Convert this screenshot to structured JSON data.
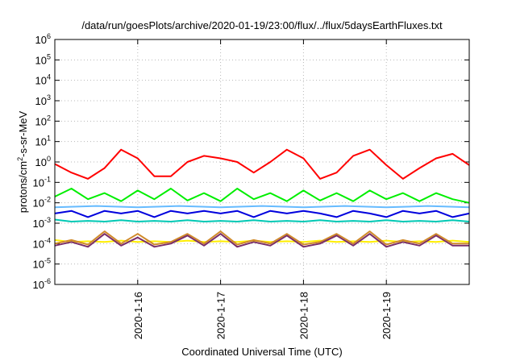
{
  "chart_data": {
    "type": "line",
    "title": "/data/run/goesPlots/archive/2020-01-19/23:00/flux/../flux/5daysEarthFluxes.txt",
    "xlabel": "Coordinated Universal Time (UTC)",
    "ylabel_parts": [
      "protons/cm",
      "2",
      "-s-sr-MeV"
    ],
    "scale_y": "log",
    "grid": true,
    "ylim": [
      1e-06,
      1000000.0
    ],
    "yticks": [
      {
        "base": "10",
        "exp": "-6",
        "value": -6
      },
      {
        "base": "10",
        "exp": "-5",
        "value": -5
      },
      {
        "base": "10",
        "exp": "-4",
        "value": -4
      },
      {
        "base": "10",
        "exp": "-3",
        "value": -3
      },
      {
        "base": "10",
        "exp": "-2",
        "value": -2
      },
      {
        "base": "10",
        "exp": "-1",
        "value": -1
      },
      {
        "base": "10",
        "exp": "0",
        "value": 0
      },
      {
        "base": "10",
        "exp": "1",
        "value": 1
      },
      {
        "base": "10",
        "exp": "2",
        "value": 2
      },
      {
        "base": "10",
        "exp": "3",
        "value": 3
      },
      {
        "base": "10",
        "exp": "4",
        "value": 4
      },
      {
        "base": "10",
        "exp": "5",
        "value": 5
      },
      {
        "base": "10",
        "exp": "6",
        "value": 6
      }
    ],
    "xlim_days": [
      15.0,
      20.0
    ],
    "xticks": [
      {
        "label": "2020-1-16",
        "day": 16
      },
      {
        "label": "2020-1-17",
        "day": 17
      },
      {
        "label": "2020-1-18",
        "day": 18
      },
      {
        "label": "2020-1-19",
        "day": 19
      }
    ],
    "series": [
      {
        "color": "#ff0000",
        "x": [
          15.0,
          15.2,
          15.4,
          15.6,
          15.8,
          16.0,
          16.2,
          16.4,
          16.6,
          16.8,
          17.0,
          17.2,
          17.4,
          17.6,
          17.8,
          18.0,
          18.2,
          18.4,
          18.6,
          18.8,
          19.0,
          19.2,
          19.4,
          19.6,
          19.8,
          20.0
        ],
        "y": [
          0.8,
          0.3,
          0.15,
          0.5,
          4.0,
          1.5,
          0.2,
          0.2,
          1.0,
          2.0,
          1.5,
          1.0,
          0.3,
          1.0,
          4.0,
          1.5,
          0.15,
          0.3,
          2.0,
          4.0,
          0.7,
          0.15,
          0.5,
          1.5,
          2.5,
          0.7
        ]
      },
      {
        "color": "#00ee00",
        "x": [
          15.0,
          15.2,
          15.4,
          15.6,
          15.8,
          16.0,
          16.2,
          16.4,
          16.6,
          16.8,
          17.0,
          17.2,
          17.4,
          17.6,
          17.8,
          18.0,
          18.2,
          18.4,
          18.6,
          18.8,
          19.0,
          19.2,
          19.4,
          19.6,
          19.8,
          20.0
        ],
        "y": [
          0.02,
          0.05,
          0.015,
          0.03,
          0.012,
          0.04,
          0.015,
          0.05,
          0.013,
          0.03,
          0.012,
          0.05,
          0.015,
          0.03,
          0.012,
          0.04,
          0.013,
          0.03,
          0.012,
          0.04,
          0.015,
          0.03,
          0.012,
          0.03,
          0.015,
          0.01
        ]
      },
      {
        "color": "#66bbff",
        "x": [
          15.0,
          15.5,
          16.0,
          16.5,
          17.0,
          17.5,
          18.0,
          18.5,
          19.0,
          19.5,
          20.0
        ],
        "y": [
          0.006,
          0.007,
          0.006,
          0.007,
          0.006,
          0.007,
          0.006,
          0.007,
          0.006,
          0.007,
          0.006
        ]
      },
      {
        "color": "#0000dd",
        "x": [
          15.0,
          15.2,
          15.4,
          15.6,
          15.8,
          16.0,
          16.2,
          16.4,
          16.6,
          16.8,
          17.0,
          17.2,
          17.4,
          17.6,
          17.8,
          18.0,
          18.2,
          18.4,
          18.6,
          18.8,
          19.0,
          19.2,
          19.4,
          19.6,
          19.8,
          20.0
        ],
        "y": [
          0.003,
          0.004,
          0.002,
          0.004,
          0.003,
          0.004,
          0.002,
          0.004,
          0.003,
          0.004,
          0.003,
          0.004,
          0.002,
          0.004,
          0.003,
          0.004,
          0.003,
          0.002,
          0.004,
          0.003,
          0.002,
          0.004,
          0.003,
          0.004,
          0.002,
          0.003
        ]
      },
      {
        "color": "#00c8b4",
        "x": [
          15.0,
          15.2,
          15.4,
          15.6,
          15.8,
          16.0,
          16.2,
          16.4,
          16.6,
          16.8,
          17.0,
          17.2,
          17.4,
          17.6,
          17.8,
          18.0,
          18.2,
          18.4,
          18.6,
          18.8,
          19.0,
          19.2,
          19.4,
          19.6,
          19.8,
          20.0
        ],
        "y": [
          0.0015,
          0.0012,
          0.0013,
          0.0012,
          0.0014,
          0.0012,
          0.0013,
          0.0012,
          0.0014,
          0.0012,
          0.0013,
          0.0012,
          0.0014,
          0.0012,
          0.0013,
          0.0012,
          0.0014,
          0.0012,
          0.0013,
          0.0012,
          0.0014,
          0.0012,
          0.0013,
          0.0012,
          0.0014,
          0.0012
        ]
      },
      {
        "color": "#ffee00",
        "x": [
          15.0,
          15.2,
          15.4,
          15.6,
          15.8,
          16.0,
          16.2,
          16.4,
          16.6,
          16.8,
          17.0,
          17.2,
          17.4,
          17.6,
          17.8,
          18.0,
          18.2,
          18.4,
          18.6,
          18.8,
          19.0,
          19.2,
          19.4,
          19.6,
          19.8,
          20.0
        ],
        "y": [
          0.00015,
          0.00012,
          0.00013,
          0.00012,
          0.00014,
          0.00012,
          0.00013,
          0.00012,
          0.00014,
          0.00012,
          0.00013,
          0.00012,
          0.00014,
          0.00012,
          0.00013,
          0.00012,
          0.00014,
          0.00012,
          0.00013,
          0.00012,
          0.00014,
          0.00012,
          0.00013,
          0.00012,
          0.00014,
          0.00012
        ]
      },
      {
        "color": "#d08a2a",
        "x": [
          15.0,
          15.2,
          15.4,
          15.6,
          15.8,
          16.0,
          16.2,
          16.4,
          16.6,
          16.8,
          17.0,
          17.2,
          17.4,
          17.6,
          17.8,
          18.0,
          18.2,
          18.4,
          18.6,
          18.8,
          19.0,
          19.2,
          19.4,
          19.6,
          19.8,
          20.0
        ],
        "y": [
          0.0001,
          0.00015,
          9e-05,
          0.0004,
          0.0001,
          0.0003,
          9e-05,
          0.00012,
          0.0003,
          0.0001,
          0.0004,
          9e-05,
          0.00015,
          0.0001,
          0.0003,
          9e-05,
          0.00012,
          0.0003,
          0.0001,
          0.0004,
          9e-05,
          0.00015,
          0.0001,
          0.0003,
          0.0001,
          0.0001
        ]
      },
      {
        "color": "#7a2e6a",
        "x": [
          15.0,
          15.2,
          15.4,
          15.6,
          15.8,
          16.0,
          16.2,
          16.4,
          16.6,
          16.8,
          17.0,
          17.2,
          17.4,
          17.6,
          17.8,
          18.0,
          18.2,
          18.4,
          18.6,
          18.8,
          19.0,
          19.2,
          19.4,
          19.6,
          19.8,
          20.0
        ],
        "y": [
          8e-05,
          0.00012,
          7e-05,
          0.0003,
          8e-05,
          0.0002,
          7e-05,
          0.0001,
          0.00025,
          8e-05,
          0.0003,
          7e-05,
          0.00012,
          8e-05,
          0.00025,
          7e-05,
          0.0001,
          0.00025,
          8e-05,
          0.0003,
          7e-05,
          0.00012,
          8e-05,
          0.00025,
          8e-05,
          8e-05
        ]
      }
    ]
  }
}
